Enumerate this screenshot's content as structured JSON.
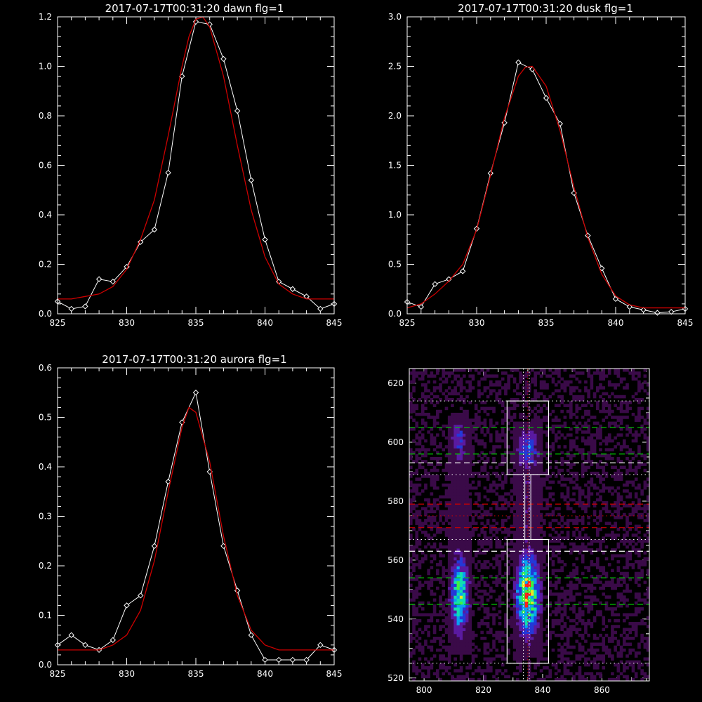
{
  "chart_data": [
    {
      "type": "line",
      "title": "2017-07-17T00:31:20 dawn flg=1",
      "xlim": [
        825,
        845
      ],
      "ylim": [
        0,
        1.2
      ],
      "xticks": [
        "825",
        "830",
        "835",
        "840",
        "845"
      ],
      "yticks": [
        "0.0",
        "0.2",
        "0.4",
        "0.6",
        "0.8",
        "1.0",
        "1.2"
      ],
      "series": [
        {
          "color": "#ffffff",
          "marker": "diamond",
          "x": [
            825,
            826,
            827,
            828,
            829,
            830,
            831,
            832,
            833,
            834,
            835,
            836,
            837,
            838,
            839,
            840,
            841,
            842,
            843,
            844,
            845
          ],
          "y": [
            0.05,
            0.02,
            0.03,
            0.14,
            0.13,
            0.19,
            0.29,
            0.34,
            0.57,
            0.96,
            1.18,
            1.17,
            1.03,
            0.82,
            0.54,
            0.3,
            0.13,
            0.1,
            0.07,
            0.02,
            0.04
          ]
        },
        {
          "color": "#cc0000",
          "marker": "none",
          "x": [
            825,
            826,
            827,
            828,
            829,
            830,
            831,
            832,
            833,
            834,
            834.5,
            835,
            835.5,
            836,
            837,
            838,
            839,
            840,
            841,
            842,
            843,
            844,
            845
          ],
          "y": [
            0.06,
            0.06,
            0.07,
            0.08,
            0.11,
            0.18,
            0.3,
            0.46,
            0.72,
            1.0,
            1.12,
            1.19,
            1.2,
            1.16,
            0.96,
            0.68,
            0.42,
            0.23,
            0.12,
            0.08,
            0.06,
            0.06,
            0.06
          ]
        }
      ]
    },
    {
      "type": "line",
      "title": "2017-07-17T00:31:20 dusk flg=1",
      "xlim": [
        825,
        845
      ],
      "ylim": [
        0,
        3.0
      ],
      "xticks": [
        "825",
        "830",
        "835",
        "840",
        "845"
      ],
      "yticks": [
        "0.0",
        "0.5",
        "1.0",
        "1.5",
        "2.0",
        "2.5",
        "3.0"
      ],
      "series": [
        {
          "color": "#ffffff",
          "marker": "diamond",
          "x": [
            825,
            826,
            827,
            828,
            829,
            830,
            831,
            832,
            833,
            834,
            835,
            836,
            837,
            838,
            839,
            840,
            841,
            842,
            843,
            844,
            845
          ],
          "y": [
            0.12,
            0.07,
            0.3,
            0.35,
            0.43,
            0.86,
            1.42,
            1.93,
            2.54,
            2.47,
            2.18,
            1.92,
            1.22,
            0.79,
            0.46,
            0.15,
            0.07,
            0.04,
            0.01,
            0.02,
            0.05
          ]
        },
        {
          "color": "#cc0000",
          "marker": "none",
          "x": [
            825,
            826,
            827,
            828,
            829,
            830,
            831,
            832,
            833,
            833.5,
            834,
            835,
            836,
            837,
            838,
            839,
            840,
            841,
            842,
            843,
            844,
            845
          ],
          "y": [
            0.06,
            0.1,
            0.2,
            0.33,
            0.5,
            0.85,
            1.4,
            1.98,
            2.4,
            2.49,
            2.5,
            2.3,
            1.85,
            1.28,
            0.77,
            0.4,
            0.18,
            0.09,
            0.06,
            0.06,
            0.06,
            0.06
          ]
        }
      ]
    },
    {
      "type": "line",
      "title": "2017-07-17T00:31:20 aurora flg=1",
      "xlim": [
        825,
        845
      ],
      "ylim": [
        0,
        0.6
      ],
      "xticks": [
        "825",
        "830",
        "835",
        "840",
        "845"
      ],
      "yticks": [
        "0.0",
        "0.1",
        "0.2",
        "0.3",
        "0.4",
        "0.5",
        "0.6"
      ],
      "series": [
        {
          "color": "#ffffff",
          "marker": "diamond",
          "x": [
            825,
            826,
            827,
            828,
            829,
            830,
            831,
            832,
            833,
            834,
            835,
            836,
            837,
            838,
            839,
            840,
            841,
            842,
            843,
            844,
            845
          ],
          "y": [
            0.04,
            0.06,
            0.04,
            0.03,
            0.05,
            0.12,
            0.14,
            0.24,
            0.37,
            0.49,
            0.55,
            0.39,
            0.24,
            0.15,
            0.06,
            0.01,
            0.01,
            0.01,
            0.01,
            0.04,
            0.03
          ]
        },
        {
          "color": "#cc0000",
          "marker": "none",
          "x": [
            825,
            826,
            827,
            828,
            829,
            830,
            831,
            832,
            833,
            834,
            834.5,
            835,
            836,
            837,
            838,
            839,
            840,
            841,
            842,
            843,
            844,
            845
          ],
          "y": [
            0.03,
            0.03,
            0.03,
            0.03,
            0.04,
            0.06,
            0.11,
            0.21,
            0.35,
            0.48,
            0.52,
            0.51,
            0.41,
            0.26,
            0.14,
            0.07,
            0.04,
            0.03,
            0.03,
            0.03,
            0.03,
            0.03
          ]
        }
      ]
    },
    {
      "type": "heatmap",
      "title": "",
      "xlim": [
        795,
        876
      ],
      "ylim": [
        519,
        625
      ],
      "xticks": [
        "800",
        "820",
        "840",
        "860"
      ],
      "yticks": [
        "520",
        "540",
        "560",
        "580",
        "600",
        "620"
      ],
      "colorscale": [
        "#000000",
        "#3a0a48",
        "#5a1aa0",
        "#2438d8",
        "#0aa0f0",
        "#10e0b0",
        "#40f040",
        "#e8e820",
        "#ff2020"
      ],
      "emission_columns": [
        {
          "x_range": [
            808,
            816
          ],
          "y_range": [
            528,
            610
          ],
          "peak_y": 548,
          "peak_level": 0.78
        },
        {
          "x_range": [
            830,
            840
          ],
          "y_range": [
            527,
            607
          ],
          "peak_y": 548,
          "peak_level": 1.0
        }
      ],
      "boxes": [
        {
          "x_range": [
            828,
            842
          ],
          "y_range": [
            525,
            567
          ]
        },
        {
          "x_range": [
            828,
            842
          ],
          "y_range": [
            589,
            614
          ]
        }
      ],
      "connector_x": [
        834,
        836
      ],
      "vertical_dotted_lines": [
        {
          "x": 833.5,
          "color": "#ffffff"
        },
        {
          "x": 835.5,
          "color": "#ffffff"
        },
        {
          "x": 835,
          "color": "#cc0000"
        }
      ],
      "dotted_hlines": [
        {
          "y": 525,
          "color": "#ffffff"
        },
        {
          "y": 567,
          "color": "#ffffff"
        },
        {
          "y": 589,
          "color": "#ffffff"
        },
        {
          "y": 614,
          "color": "#ffffff"
        },
        {
          "y": 575,
          "color": "#cc0000"
        }
      ],
      "dashed_hlines": [
        {
          "y": 545,
          "color": "#00cc00"
        },
        {
          "y": 554,
          "color": "#00cc00"
        },
        {
          "y": 563,
          "color": "#ffffff"
        },
        {
          "y": 571,
          "color": "#cc0000"
        },
        {
          "y": 579,
          "color": "#cc0000"
        },
        {
          "y": 593,
          "color": "#ffffff"
        },
        {
          "y": 596,
          "color": "#00cc00"
        },
        {
          "y": 605,
          "color": "#00cc00"
        }
      ]
    }
  ]
}
